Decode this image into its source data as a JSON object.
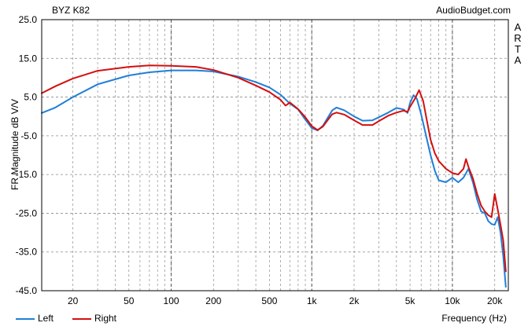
{
  "header": {
    "title": "BYZ K82",
    "brand": "AudioBudget.com",
    "watermark": "ARTA"
  },
  "chart_data": {
    "type": "line",
    "title": "BYZ K82",
    "xlabel": "Frequency (Hz)",
    "ylabel": "FR Magnitude dB V/V",
    "xscale": "log",
    "xlim": [
      12,
      25000
    ],
    "ylim": [
      -45,
      25
    ],
    "x_ticks": [
      20,
      50,
      100,
      200,
      500,
      1000,
      2000,
      5000,
      10000,
      20000
    ],
    "x_tick_labels": [
      "20",
      "50",
      "100",
      "200",
      "500",
      "1k",
      "2k",
      "5k",
      "10k",
      "20k"
    ],
    "y_ticks": [
      25,
      15,
      5,
      -5,
      -15,
      -25,
      -35,
      -45
    ],
    "y_tick_labels": [
      "25.0",
      "15.0",
      "5.0",
      "-5.0",
      "-15.0",
      "-25.0",
      "-35.0",
      "-45.0"
    ],
    "grid": true,
    "legend_position": "bottom-left",
    "series": [
      {
        "name": "Left",
        "color": "#1f7fd8",
        "points": [
          [
            12,
            0.9
          ],
          [
            15,
            2.3
          ],
          [
            20,
            5.0
          ],
          [
            30,
            8.3
          ],
          [
            50,
            10.6
          ],
          [
            70,
            11.4
          ],
          [
            100,
            11.9
          ],
          [
            150,
            11.9
          ],
          [
            200,
            11.6
          ],
          [
            300,
            10.3
          ],
          [
            400,
            8.9
          ],
          [
            500,
            7.5
          ],
          [
            600,
            5.6
          ],
          [
            700,
            3.3
          ],
          [
            800,
            1.8
          ],
          [
            900,
            -0.8
          ],
          [
            1000,
            -3.0
          ],
          [
            1100,
            -3.6
          ],
          [
            1200,
            -2.4
          ],
          [
            1300,
            -0.3
          ],
          [
            1400,
            1.6
          ],
          [
            1500,
            2.3
          ],
          [
            1700,
            1.6
          ],
          [
            2000,
            0.0
          ],
          [
            2300,
            -1.1
          ],
          [
            2700,
            -1.0
          ],
          [
            3000,
            -0.2
          ],
          [
            3500,
            1.0
          ],
          [
            4000,
            2.2
          ],
          [
            4500,
            1.8
          ],
          [
            4800,
            0.9
          ],
          [
            5000,
            3.5
          ],
          [
            5300,
            5.5
          ],
          [
            5600,
            4.5
          ],
          [
            6000,
            0.5
          ],
          [
            6500,
            -5.0
          ],
          [
            7000,
            -10.0
          ],
          [
            7500,
            -14.0
          ],
          [
            8000,
            -16.5
          ],
          [
            9000,
            -17.0
          ],
          [
            10000,
            -15.8
          ],
          [
            11000,
            -17.0
          ],
          [
            12000,
            -15.8
          ],
          [
            13000,
            -13.5
          ],
          [
            14000,
            -17.0
          ],
          [
            15000,
            -21.5
          ],
          [
            16000,
            -24.5
          ],
          [
            17000,
            -25.0
          ],
          [
            18000,
            -27.0
          ],
          [
            19000,
            -27.8
          ],
          [
            20000,
            -28.0
          ],
          [
            21000,
            -26.0
          ],
          [
            22000,
            -30.0
          ],
          [
            23000,
            -36.0
          ],
          [
            24000,
            -44.0
          ]
        ]
      },
      {
        "name": "Right",
        "color": "#d40f0f",
        "points": [
          [
            12,
            6.0
          ],
          [
            15,
            7.8
          ],
          [
            20,
            9.8
          ],
          [
            30,
            11.8
          ],
          [
            50,
            12.8
          ],
          [
            70,
            13.2
          ],
          [
            100,
            13.1
          ],
          [
            150,
            12.8
          ],
          [
            200,
            12.0
          ],
          [
            300,
            10.0
          ],
          [
            400,
            8.0
          ],
          [
            500,
            6.3
          ],
          [
            600,
            4.3
          ],
          [
            650,
            2.8
          ],
          [
            700,
            3.6
          ],
          [
            800,
            1.9
          ],
          [
            900,
            -0.2
          ],
          [
            1000,
            -2.5
          ],
          [
            1100,
            -3.5
          ],
          [
            1200,
            -2.6
          ],
          [
            1300,
            -0.9
          ],
          [
            1400,
            0.6
          ],
          [
            1500,
            1.0
          ],
          [
            1700,
            0.5
          ],
          [
            2000,
            -1.0
          ],
          [
            2300,
            -2.2
          ],
          [
            2700,
            -2.2
          ],
          [
            3000,
            -1.2
          ],
          [
            3500,
            0.2
          ],
          [
            4000,
            1.0
          ],
          [
            4500,
            1.5
          ],
          [
            4800,
            1.2
          ],
          [
            5000,
            2.5
          ],
          [
            5400,
            4.5
          ],
          [
            5800,
            6.8
          ],
          [
            6200,
            4.0
          ],
          [
            6500,
            0.0
          ],
          [
            7000,
            -6.0
          ],
          [
            7500,
            -9.5
          ],
          [
            8000,
            -11.5
          ],
          [
            9000,
            -13.5
          ],
          [
            10000,
            -14.6
          ],
          [
            11000,
            -15.0
          ],
          [
            12000,
            -13.5
          ],
          [
            12500,
            -11.0
          ],
          [
            13000,
            -13.0
          ],
          [
            14000,
            -16.0
          ],
          [
            15000,
            -20.0
          ],
          [
            16000,
            -23.0
          ],
          [
            17000,
            -24.5
          ],
          [
            18000,
            -25.5
          ],
          [
            19000,
            -26.0
          ],
          [
            19500,
            -23.0
          ],
          [
            20000,
            -20.0
          ],
          [
            21000,
            -24.0
          ],
          [
            22000,
            -28.0
          ],
          [
            23000,
            -32.0
          ],
          [
            24000,
            -40.0
          ]
        ]
      }
    ]
  }
}
